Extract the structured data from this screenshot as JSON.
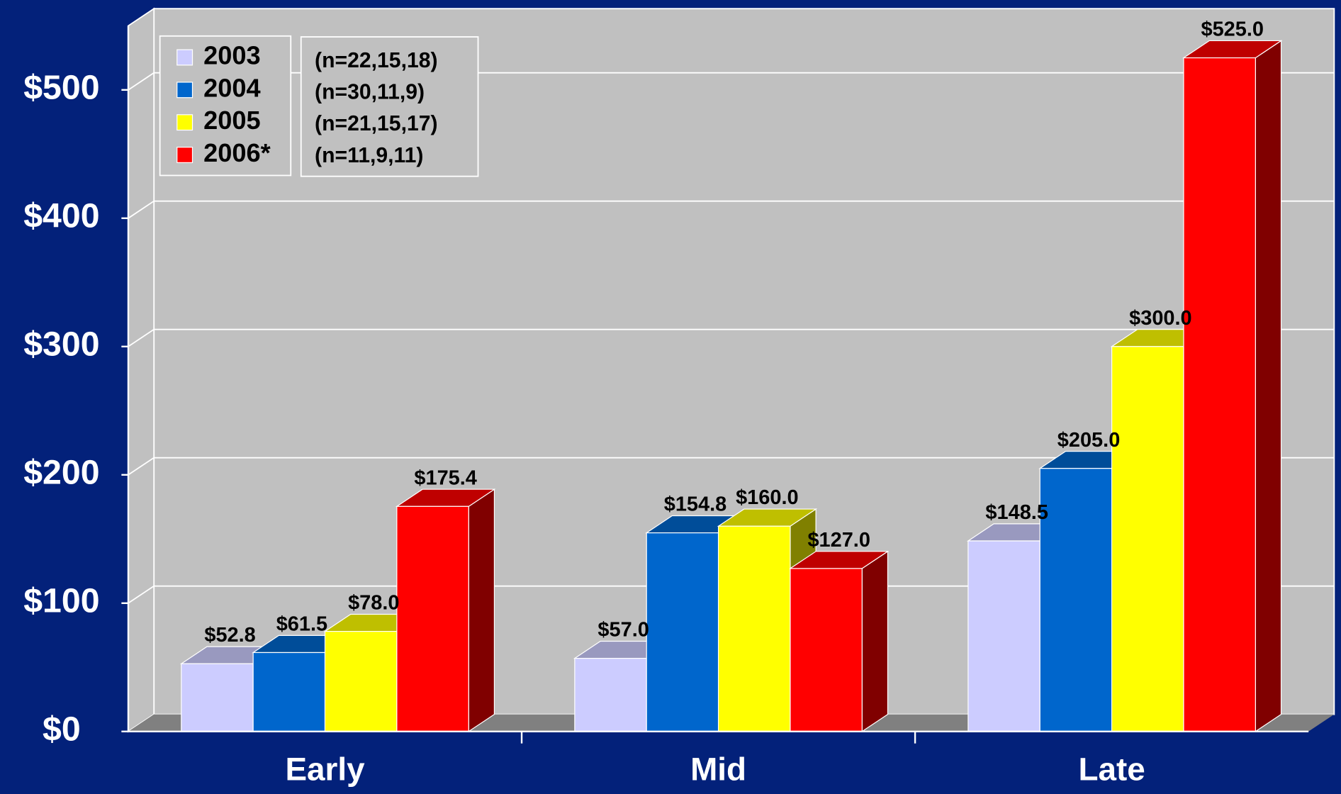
{
  "chart_data": {
    "type": "bar3d",
    "categories": [
      "Early",
      "Mid",
      "Late"
    ],
    "series": [
      {
        "name": "2003",
        "color": "#ccccff",
        "values": [
          52.8,
          57.0,
          148.5
        ],
        "value_labels": [
          "$52.8",
          "$57.0",
          "$148.5"
        ]
      },
      {
        "name": "2004",
        "color": "#0066cc",
        "values": [
          61.5,
          154.8,
          205.0
        ],
        "value_labels": [
          "$61.5",
          "$154.8",
          "$205.0"
        ]
      },
      {
        "name": "2005",
        "color": "#ffff00",
        "values": [
          78.0,
          160.0,
          300.0
        ],
        "value_labels": [
          "$78.0",
          "$160.0",
          "$300.0"
        ]
      },
      {
        "name": "2006*",
        "color": "#ff0000",
        "values": [
          175.4,
          127.0,
          525.0
        ],
        "value_labels": [
          "$175.4",
          "$127.0",
          "$525.0"
        ]
      }
    ],
    "annotations": [
      "(n=22,15,18)",
      "(n=30,11,9)",
      "(n=21,15,17)",
      "(n=11,9,11)"
    ],
    "ylim": [
      0,
      550
    ],
    "yticks": [
      {
        "value": 0,
        "label": "$0"
      },
      {
        "value": 100,
        "label": "$100"
      },
      {
        "value": 200,
        "label": "$200"
      },
      {
        "value": 300,
        "label": "$300"
      },
      {
        "value": 400,
        "label": "$400"
      },
      {
        "value": 500,
        "label": "$500"
      }
    ],
    "grid": true,
    "legend": "top-left"
  }
}
